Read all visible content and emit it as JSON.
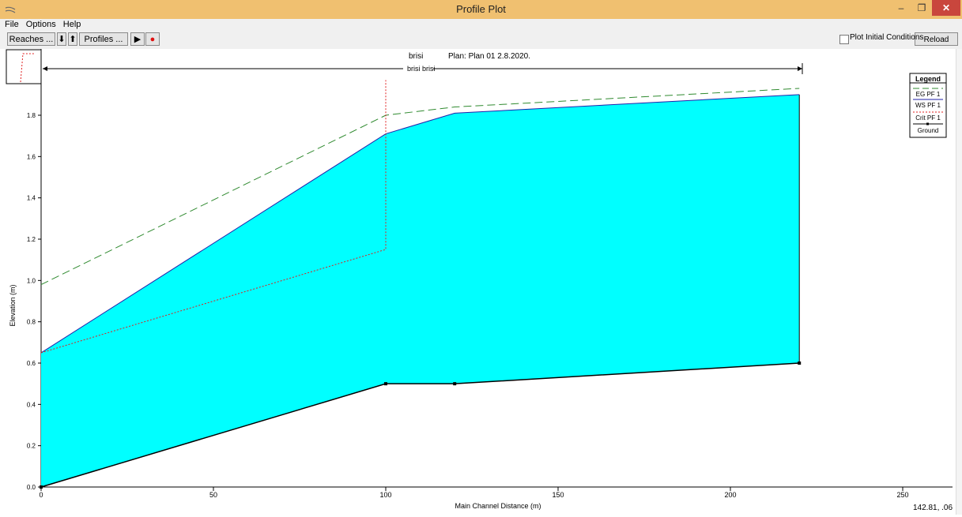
{
  "window": {
    "title": "Profile Plot",
    "minimize": "–",
    "restore": "❐",
    "close": "✕"
  },
  "menu": {
    "items": [
      "File",
      "Options",
      "Help"
    ]
  },
  "toolbar": {
    "reaches_label": "Reaches ...",
    "down_arrow": "⬇",
    "up_arrow": "⬆",
    "profiles_label": "Profiles ...",
    "play": "▶",
    "record": "●",
    "plot_initial_label": "Plot Initial Conditions",
    "plot_initial_checked": false,
    "reload_label": "Reload Data"
  },
  "plot": {
    "header_river": "brisi",
    "header_plan": "Plan: Plan 01    2.8.2020.",
    "reach_label": "brisi brisi",
    "cursor_readout": "142.81, .06"
  },
  "legend": {
    "title": "Legend",
    "items": [
      {
        "label": "EG  PF 1",
        "color": "#2f8a2f",
        "style": "long-dash"
      },
      {
        "label": "WS  PF 1",
        "color": "#2222aa",
        "style": "solid"
      },
      {
        "label": "Crit  PF 1",
        "color": "#e02020",
        "style": "dotted"
      },
      {
        "label": "Ground",
        "color": "#000000",
        "style": "solid-marker"
      }
    ]
  },
  "colors": {
    "water": "#00ffff",
    "ws_line": "#2222aa",
    "eg_line": "#2f8a2f",
    "crit_line": "#e02020",
    "ground": "#000000"
  },
  "chart_data": {
    "type": "line",
    "xlabel": "Main Channel Distance (m)",
    "ylabel": "Elevation (m)",
    "xlim": [
      0,
      250
    ],
    "ylim": [
      0,
      1.95
    ],
    "xticks": [
      0,
      50,
      100,
      150,
      200,
      250
    ],
    "yticks": [
      0.0,
      0.2,
      0.4,
      0.6,
      0.8,
      1.0,
      1.2,
      1.4,
      1.6,
      1.8
    ],
    "series": [
      {
        "name": "EG  PF 1",
        "x": [
          0,
          100,
          120,
          220
        ],
        "y": [
          0.98,
          1.8,
          1.84,
          1.93
        ]
      },
      {
        "name": "WS  PF 1",
        "x": [
          0,
          100,
          120,
          220
        ],
        "y": [
          0.65,
          1.71,
          1.81,
          1.9
        ]
      },
      {
        "name": "Crit  PF 1",
        "x": [
          0,
          100,
          100
        ],
        "y": [
          0.65,
          1.15,
          1.97
        ]
      },
      {
        "name": "Ground",
        "x": [
          0,
          100,
          120,
          220
        ],
        "y": [
          0.0,
          0.5,
          0.5,
          0.6
        ]
      }
    ]
  }
}
